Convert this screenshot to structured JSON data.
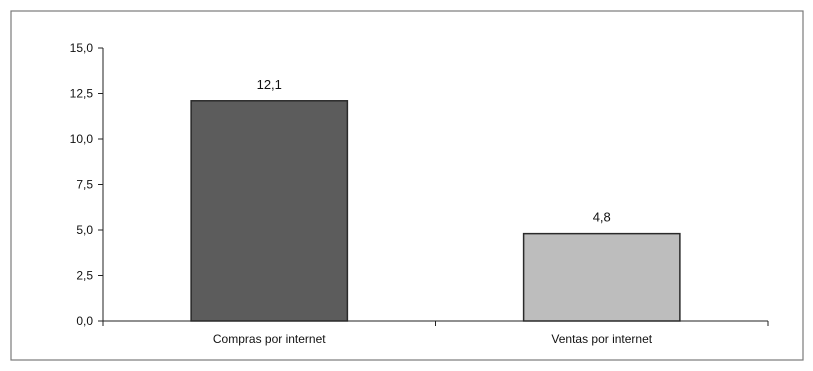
{
  "chart_data": {
    "type": "bar",
    "title": "",
    "xlabel": "",
    "ylabel": "",
    "categories": [
      "Compras por internet",
      "Ventas por internet"
    ],
    "values": [
      12.1,
      4.8
    ],
    "data_labels": [
      "12,1",
      "4,8"
    ],
    "ylim": [
      0,
      15
    ],
    "yticks": [
      0,
      2.5,
      5,
      7.5,
      10,
      12.5,
      15
    ],
    "ytick_labels": [
      "0,0",
      "2,5",
      "5,0",
      "7,5",
      "10,0",
      "12,5",
      "15,0"
    ],
    "grid": false,
    "legend": "none",
    "bar_colors": [
      "#5c5c5c",
      "#bdbdbd"
    ],
    "bar_edge_color": "#2a2a2a"
  }
}
